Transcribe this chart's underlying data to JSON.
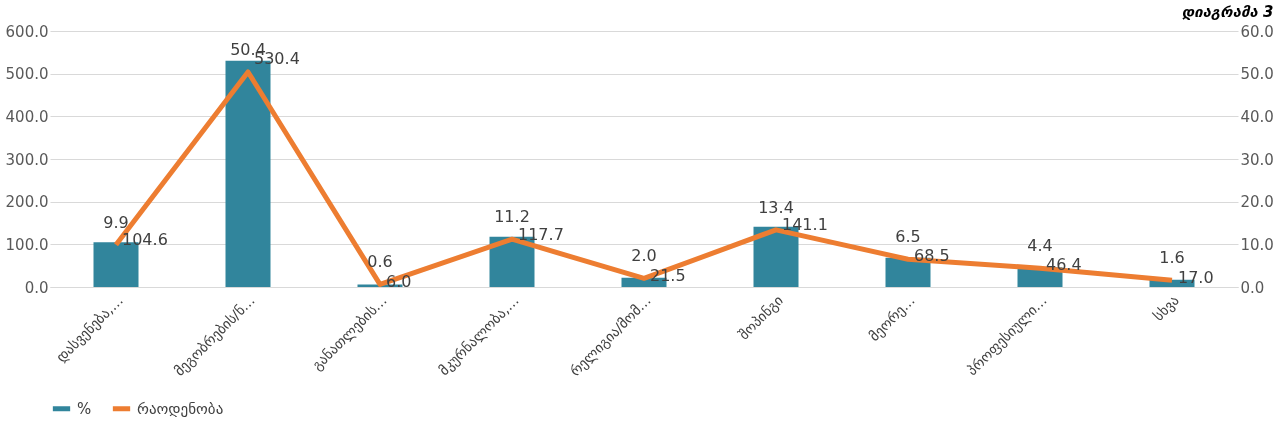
{
  "chart_data": {
    "type": "bar",
    "title": "დიაგრამა 3",
    "categories": [
      "დასვენება,…",
      "მეგობრების/ნ…",
      "განათლების…",
      "მკურნალობა,…",
      "რელიგია/მომ…",
      "შოპინგი",
      "მეორე…",
      "პროფესიული…",
      "სხვა"
    ],
    "series": [
      {
        "name": "%",
        "color": "#31859c",
        "values": [
          104.6,
          530.4,
          6.0,
          117.7,
          21.5,
          141.1,
          68.5,
          46.4,
          17.0
        ],
        "value_labels": [
          "104.6",
          "530.4",
          "6.0",
          "117.7",
          "21.5",
          "141.1",
          "68.5",
          "46.4",
          "17.0"
        ]
      },
      {
        "name": "რაოდენობა",
        "type": "line",
        "axis": "y2",
        "color": "#ed7d31",
        "values": [
          9.9,
          50.4,
          0.6,
          11.2,
          2.0,
          13.4,
          6.5,
          4.4,
          1.6
        ],
        "value_labels": [
          "9.9",
          "50.4",
          "0.6",
          "11.2",
          "2.0",
          "13.4",
          "6.5",
          "4.4",
          "1.6"
        ]
      }
    ],
    "ylim": [
      0,
      600
    ],
    "yticks": [
      {
        "value": 0,
        "label": "0.0"
      },
      {
        "value": 100,
        "label": "100.0"
      },
      {
        "value": 200,
        "label": "200.0"
      },
      {
        "value": 300,
        "label": "300.0"
      },
      {
        "value": 400,
        "label": "400.0"
      },
      {
        "value": 500,
        "label": "500.0"
      },
      {
        "value": 600,
        "label": "600.0"
      }
    ],
    "y2lim": [
      0,
      60
    ],
    "y2ticks": [
      {
        "value": 0,
        "label": "0.0"
      },
      {
        "value": 10,
        "label": "10.0"
      },
      {
        "value": 20,
        "label": "20.0"
      },
      {
        "value": 30,
        "label": "30.0"
      },
      {
        "value": 40,
        "label": "40.0"
      },
      {
        "value": 50,
        "label": "50.0"
      },
      {
        "value": 60,
        "label": "60.0"
      }
    ],
    "grid": "y",
    "legend": "bottom",
    "marker": "none",
    "line_style": "solid"
  }
}
